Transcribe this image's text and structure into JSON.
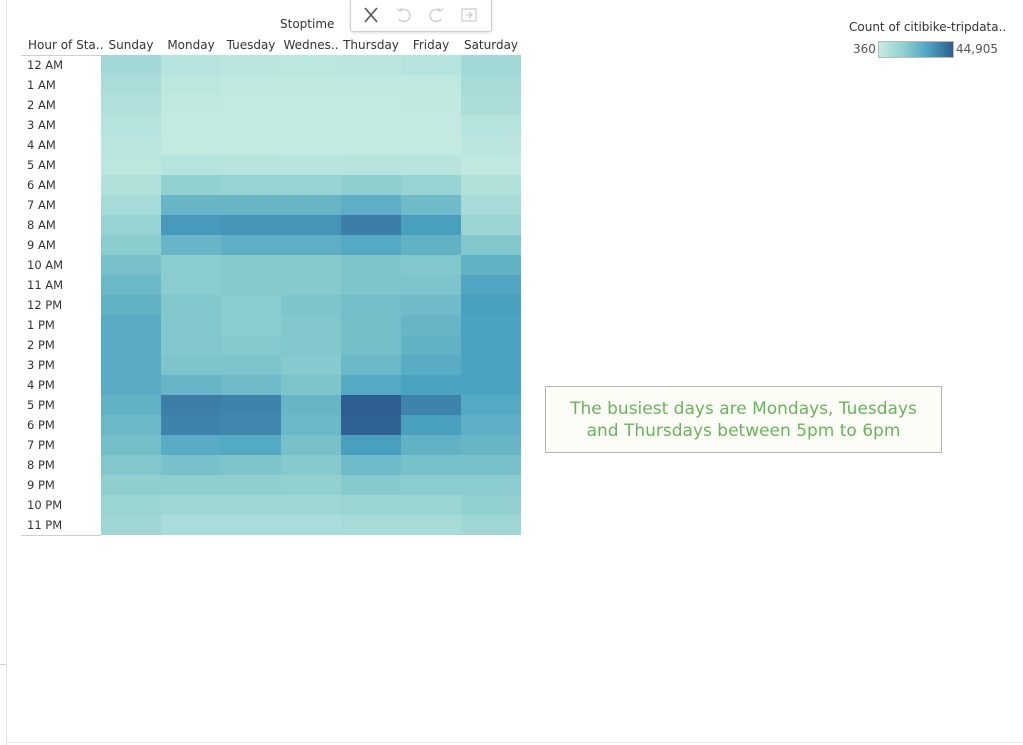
{
  "toolbar": {
    "buttons": [
      {
        "name": "close-icon",
        "enabled": true
      },
      {
        "name": "undo-icon",
        "enabled": false
      },
      {
        "name": "redo-icon",
        "enabled": false
      },
      {
        "name": "exit-icon",
        "enabled": false
      }
    ]
  },
  "legend": {
    "title": "Count of citibike-tripdata..",
    "min_label": "360",
    "max_label": "44,905"
  },
  "annotation": {
    "text": "The busiest days are Mondays, Tuesdays and Thursdays between 5pm to 6pm"
  },
  "chart_data": {
    "type": "heatmap",
    "title": "",
    "column_title": "Stoptime",
    "row_header": "Hour of Sta..",
    "columns": [
      "Sunday",
      "Monday",
      "Tuesday",
      "Wednes..",
      "Thursday",
      "Friday",
      "Saturday"
    ],
    "rows": [
      "12 AM",
      "1 AM",
      "2 AM",
      "3 AM",
      "4 AM",
      "5 AM",
      "6 AM",
      "7 AM",
      "8 AM",
      "9 AM",
      "10 AM",
      "11 AM",
      "12 PM",
      "1 PM",
      "2 PM",
      "3 PM",
      "4 PM",
      "5 PM",
      "6 PM",
      "7 PM",
      "8 PM",
      "9 PM",
      "10 PM",
      "11 PM"
    ],
    "color_range": [
      360,
      44905
    ],
    "color_scale": [
      "#c6ece3",
      "#8fcfcf",
      "#4ba3c1",
      "#2f5e91"
    ],
    "values": [
      [
        10000,
        5000,
        3500,
        3000,
        3500,
        5000,
        10000
      ],
      [
        8000,
        3000,
        2000,
        2000,
        2000,
        2500,
        9000
      ],
      [
        6500,
        2000,
        1500,
        1200,
        1500,
        1800,
        7500
      ],
      [
        5000,
        1500,
        1000,
        800,
        1000,
        1200,
        5000
      ],
      [
        3500,
        1500,
        1200,
        1000,
        1200,
        1500,
        3500
      ],
      [
        3000,
        5000,
        4500,
        4500,
        4500,
        4500,
        2500
      ],
      [
        6000,
        14000,
        13000,
        13000,
        15000,
        13000,
        6000
      ],
      [
        9000,
        24000,
        24000,
        24000,
        26000,
        22000,
        9000
      ],
      [
        13000,
        32000,
        33000,
        33000,
        38000,
        31000,
        12000
      ],
      [
        16000,
        24000,
        26000,
        26000,
        28000,
        25000,
        18000
      ],
      [
        20000,
        16000,
        17000,
        17000,
        19000,
        18000,
        25000
      ],
      [
        23000,
        16000,
        17000,
        17000,
        19000,
        19000,
        29000
      ],
      [
        25000,
        18000,
        16000,
        19000,
        21000,
        22000,
        31000
      ],
      [
        27000,
        18000,
        16000,
        18000,
        21000,
        24000,
        30000
      ],
      [
        27000,
        18000,
        17000,
        18000,
        21000,
        25000,
        30000
      ],
      [
        27000,
        19000,
        19000,
        17000,
        23000,
        27000,
        30000
      ],
      [
        27000,
        24000,
        22000,
        19000,
        28000,
        30000,
        30000
      ],
      [
        25000,
        38000,
        37000,
        24000,
        44905,
        37000,
        28000
      ],
      [
        23000,
        37000,
        36000,
        23000,
        44000,
        31000,
        26000
      ],
      [
        21000,
        27000,
        28000,
        20000,
        31000,
        25000,
        24000
      ],
      [
        18000,
        20000,
        19000,
        17000,
        22000,
        20000,
        20000
      ],
      [
        15000,
        15000,
        15000,
        14000,
        17000,
        16000,
        16000
      ],
      [
        12000,
        11000,
        11000,
        11000,
        12000,
        12000,
        14000
      ],
      [
        11000,
        8000,
        8000,
        8000,
        9000,
        9000,
        11000
      ]
    ],
    "grid": false,
    "legend_placement": "top-right"
  }
}
